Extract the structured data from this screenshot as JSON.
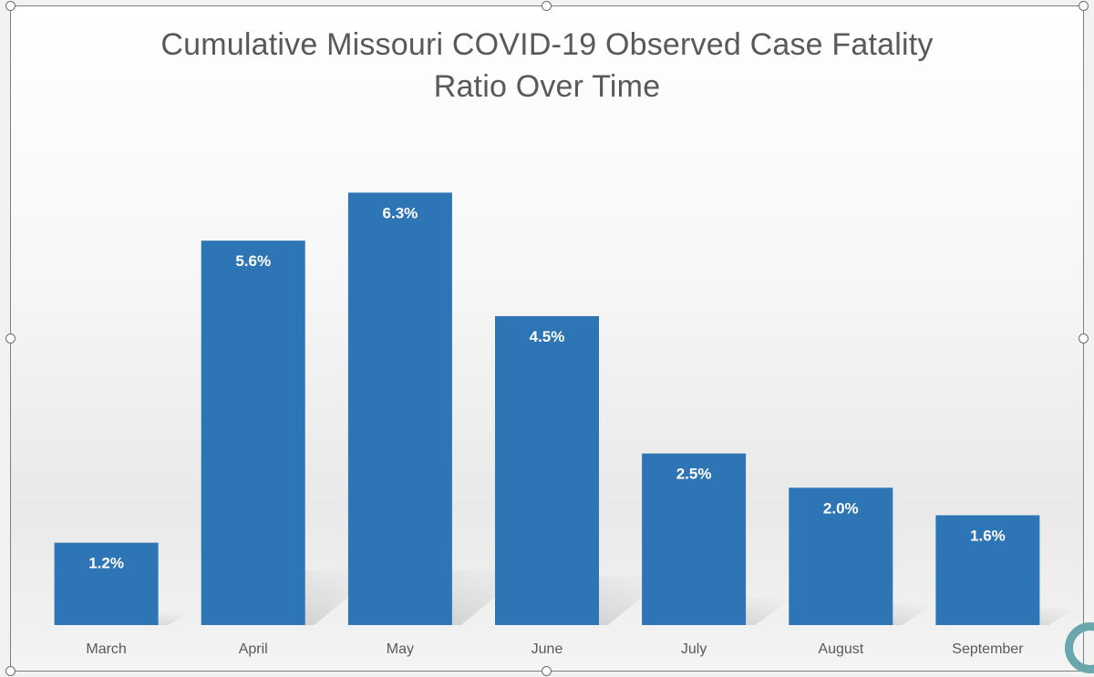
{
  "chart_data": {
    "type": "bar",
    "title_lines": [
      "Cumulative Missouri COVID-19 Observed Case Fatality",
      "Ratio Over Time"
    ],
    "categories": [
      "March",
      "April",
      "May",
      "June",
      "July",
      "August",
      "September"
    ],
    "values": [
      1.2,
      5.6,
      6.3,
      4.5,
      2.5,
      2.0,
      1.6
    ],
    "data_labels": [
      "1.2%",
      "5.6%",
      "6.3%",
      "4.5%",
      "2.5%",
      "2.0%",
      "1.6%"
    ],
    "unit": "%",
    "ylim": [
      0,
      7.5
    ],
    "grid": false,
    "legend": "none",
    "bar_color": "#2e75b6",
    "label_color": "#ffffff",
    "tick_label_color": "#595959"
  }
}
